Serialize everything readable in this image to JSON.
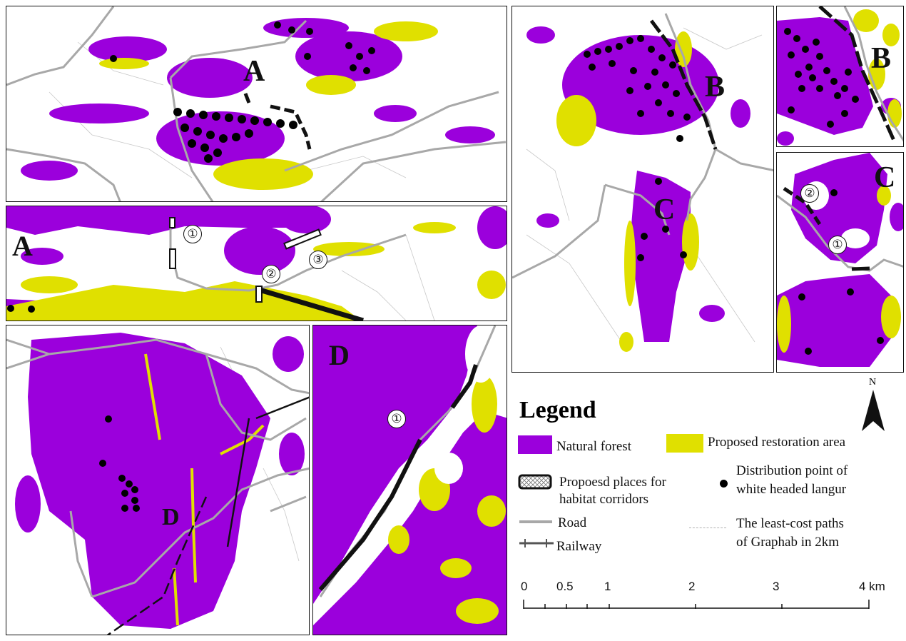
{
  "colors": {
    "natural_forest": "#9b00dc",
    "restoration": "#e0e000",
    "road": "#a8a8a8",
    "railway": "#555555",
    "lcp": "#c8c8c8",
    "points": "#000000"
  },
  "panels": {
    "main_top_left": {
      "label": "A"
    },
    "inset_a": {
      "label": "A",
      "markers": [
        "①",
        "②",
        "③"
      ]
    },
    "main_right": {
      "label_b": "B",
      "label_c": "C"
    },
    "inset_b": {
      "label": "B"
    },
    "inset_c": {
      "label": "C",
      "markers": [
        "②",
        "①"
      ]
    },
    "main_bottom_left": {
      "label": "D"
    },
    "inset_d": {
      "label": "D",
      "markers": [
        "①"
      ]
    }
  },
  "legend": {
    "title": "Legend",
    "natural_forest": "Natural forest",
    "restoration": "Proposed restoration area",
    "corridor_line1": "Propoesd places for",
    "corridor_line2": "habitat corridors",
    "point_line1": "Distribution point of",
    "point_line2": "white headed  langur",
    "road": "Road",
    "lcp_line1": "The least-cost paths",
    "lcp_line2": "of Graphab in 2km",
    "railway": "Railway"
  },
  "north_arrow": {
    "label": "N"
  },
  "scale_bar": {
    "ticks": [
      "0",
      "0.5",
      "1",
      "2",
      "3",
      "4 km"
    ]
  }
}
